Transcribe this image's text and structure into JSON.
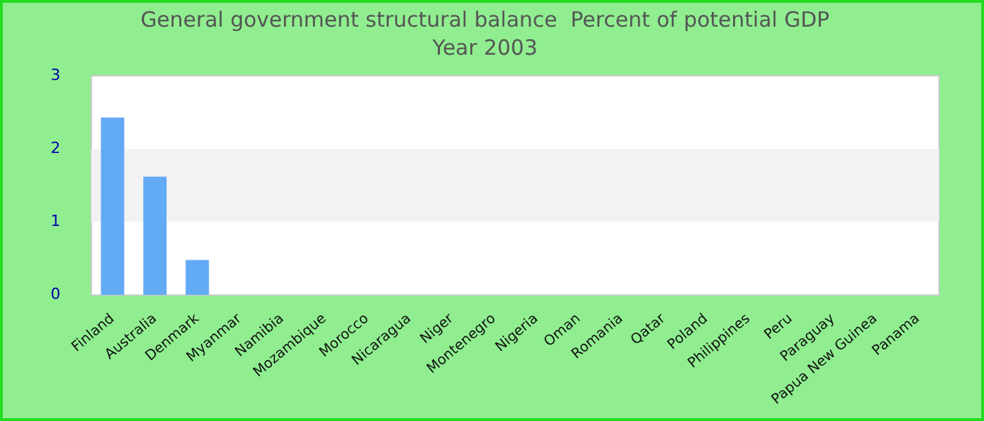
{
  "chart_data": {
    "type": "bar",
    "title": "General government structural balance  Percent of potential GDP",
    "subtitle": "Year 2003",
    "categories": [
      "Finland",
      "Australia",
      "Denmark",
      "Myanmar",
      "Namibia",
      "Mozambique",
      "Morocco",
      "Nicaragua",
      "Niger",
      "Montenegro",
      "Nigeria",
      "Oman",
      "Romania",
      "Qatar",
      "Poland",
      "Philippines",
      "Peru",
      "Paraguay",
      "Papua New Guinea",
      "Panama"
    ],
    "values": [
      2.43,
      1.62,
      0.48,
      null,
      null,
      null,
      null,
      null,
      null,
      null,
      null,
      null,
      null,
      null,
      null,
      null,
      null,
      null,
      null,
      null
    ],
    "color": "#63aaf5",
    "ylim": [
      0,
      3
    ],
    "yticks": [
      0,
      1,
      2,
      3
    ],
    "bands": [
      {
        "axis": "y",
        "from": 1,
        "to": 2,
        "color": "#f2f2f2"
      }
    ],
    "legend": false
  }
}
